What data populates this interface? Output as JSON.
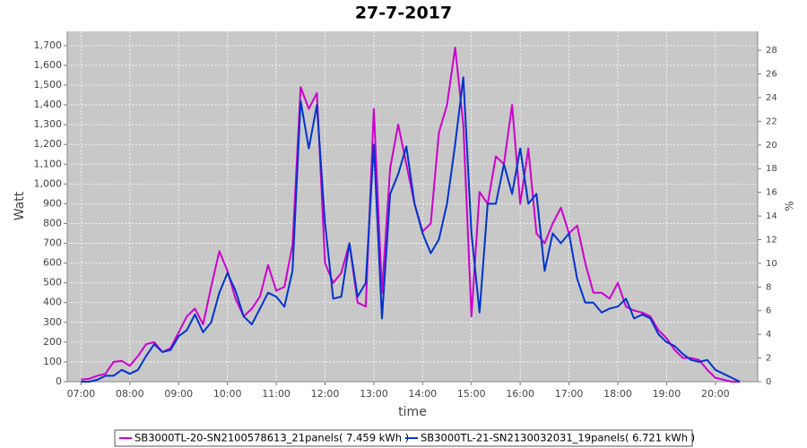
{
  "chart_data": {
    "type": "line",
    "title": "27-7-2017",
    "xlabel": "time",
    "ylabel": "Watt",
    "y2label": "%",
    "x": [
      "07:00",
      "07:10",
      "07:20",
      "07:30",
      "07:40",
      "07:50",
      "08:00",
      "08:10",
      "08:20",
      "08:30",
      "08:40",
      "08:50",
      "09:00",
      "09:10",
      "09:20",
      "09:30",
      "09:40",
      "09:50",
      "10:00",
      "10:10",
      "10:20",
      "10:30",
      "10:40",
      "10:50",
      "11:00",
      "11:10",
      "11:20",
      "11:30",
      "11:40",
      "11:50",
      "12:00",
      "12:10",
      "12:20",
      "12:30",
      "12:40",
      "12:50",
      "13:00",
      "13:10",
      "13:20",
      "13:30",
      "13:40",
      "13:50",
      "14:00",
      "14:10",
      "14:20",
      "14:30",
      "14:40",
      "14:50",
      "15:00",
      "15:10",
      "15:20",
      "15:30",
      "15:40",
      "15:50",
      "16:00",
      "16:10",
      "16:20",
      "16:30",
      "16:40",
      "16:50",
      "17:00",
      "17:10",
      "17:20",
      "17:30",
      "17:40",
      "17:50",
      "18:00",
      "18:10",
      "18:20",
      "18:30",
      "18:40",
      "18:50",
      "19:00",
      "19:10",
      "19:20",
      "19:30",
      "19:40",
      "19:50",
      "20:00",
      "20:10",
      "20:20",
      "20:30"
    ],
    "series": [
      {
        "name": "SB3000TL-20-SN2100578613_21panels( 7.459 kWh )",
        "color": "#cc00cc",
        "values": [
          10,
          15,
          30,
          40,
          100,
          105,
          80,
          130,
          190,
          200,
          150,
          170,
          250,
          330,
          370,
          290,
          480,
          660,
          560,
          420,
          330,
          370,
          430,
          590,
          460,
          480,
          690,
          1490,
          1380,
          1460,
          600,
          500,
          550,
          700,
          400,
          380,
          1380,
          450,
          1080,
          1300,
          1100,
          900,
          760,
          800,
          1260,
          1400,
          1690,
          1300,
          330,
          960,
          900,
          1140,
          1100,
          1400,
          900,
          1180,
          750,
          700,
          800,
          880,
          750,
          790,
          600,
          450,
          450,
          420,
          500,
          380,
          360,
          350,
          330,
          260,
          220,
          160,
          120,
          120,
          110,
          60,
          20,
          10,
          0,
          0
        ]
      },
      {
        "name": "SB3000TL-21-SN2130032031_19panels( 6.721 kWh )",
        "color": "#0033cc",
        "values": [
          0,
          0,
          10,
          30,
          30,
          60,
          40,
          60,
          130,
          190,
          150,
          160,
          230,
          260,
          340,
          250,
          300,
          450,
          550,
          460,
          330,
          290,
          370,
          450,
          430,
          380,
          560,
          1420,
          1180,
          1400,
          800,
          420,
          430,
          700,
          430,
          500,
          1200,
          320,
          950,
          1050,
          1190,
          900,
          750,
          650,
          720,
          900,
          1200,
          1540,
          750,
          350,
          900,
          900,
          1100,
          950,
          1180,
          900,
          950,
          560,
          750,
          700,
          750,
          520,
          400,
          400,
          350,
          370,
          380,
          420,
          320,
          340,
          320,
          240,
          200,
          180,
          140,
          110,
          100,
          110,
          60,
          40,
          20,
          0
        ]
      }
    ],
    "xlim": [
      "06:43",
      "20:52"
    ],
    "xticks": [
      "07:00",
      "08:00",
      "09:00",
      "10:00",
      "11:00",
      "12:00",
      "13:00",
      "14:00",
      "15:00",
      "16:00",
      "17:00",
      "18:00",
      "19:00",
      "20:00"
    ],
    "ylim": [
      0,
      1772
    ],
    "yticks": [
      0,
      100,
      200,
      300,
      400,
      500,
      600,
      700,
      800,
      900,
      {
        "value": 1000,
        "label": "1,000"
      },
      {
        "value": 1100,
        "label": "1,100"
      },
      {
        "value": 1200,
        "label": "1,200"
      },
      {
        "value": 1300,
        "label": "1,300"
      },
      {
        "value": 1400,
        "label": "1,400"
      },
      {
        "value": 1500,
        "label": "1,500"
      },
      {
        "value": 1600,
        "label": "1,600"
      },
      {
        "value": 1700,
        "label": "1,700"
      }
    ],
    "y2lim": [
      0,
      29.6
    ],
    "y2ticks": [
      0,
      2,
      4,
      6,
      8,
      10,
      12,
      14,
      16,
      18,
      20,
      22,
      24,
      26,
      28
    ],
    "grid": true
  }
}
